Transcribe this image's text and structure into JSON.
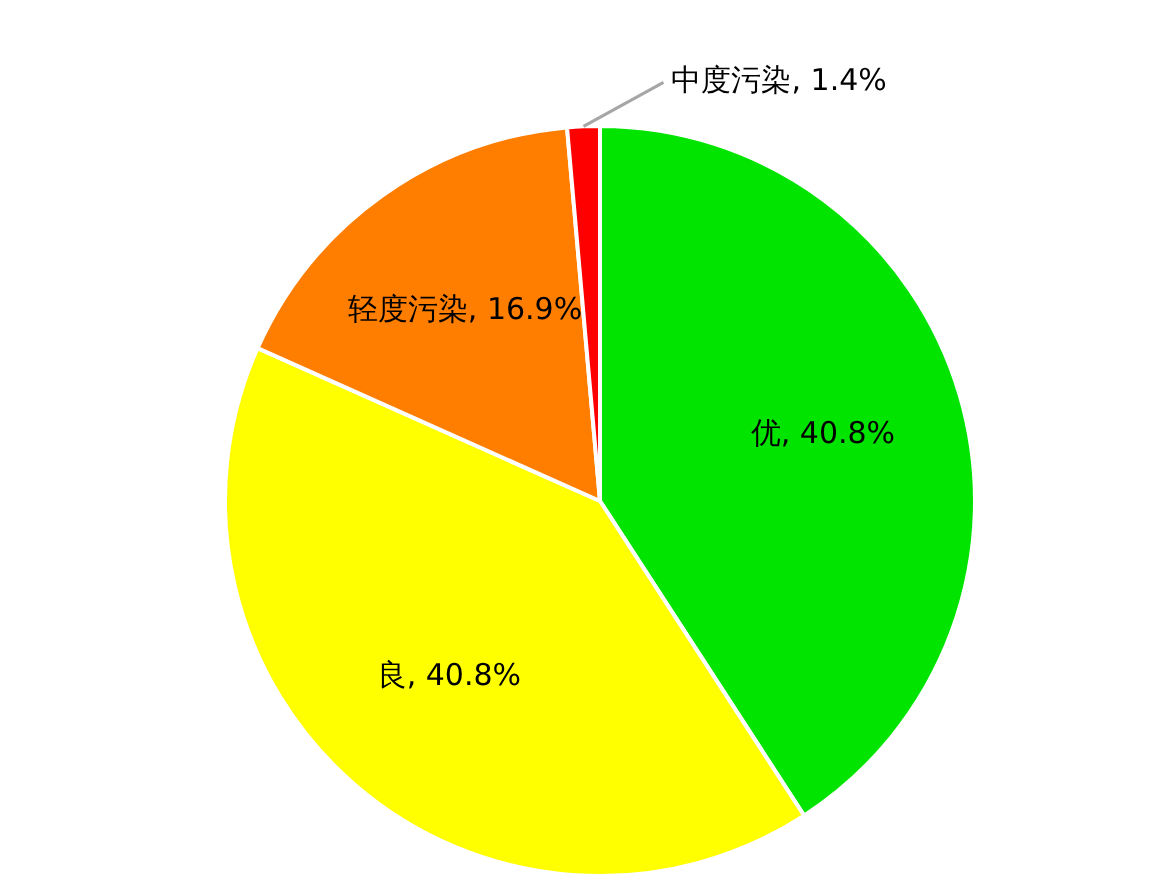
{
  "chart_data": {
    "type": "pie",
    "categories": [
      "优",
      "良",
      "轻度污染",
      "中度污染"
    ],
    "values": [
      40.8,
      40.8,
      16.9,
      1.4
    ],
    "colors": [
      "#00e400",
      "#ffff00",
      "#ff7e00",
      "#ff0000"
    ],
    "value_labels": [
      "40.8%",
      "40.8%",
      "16.9%",
      "1.4%"
    ],
    "legend": false
  }
}
